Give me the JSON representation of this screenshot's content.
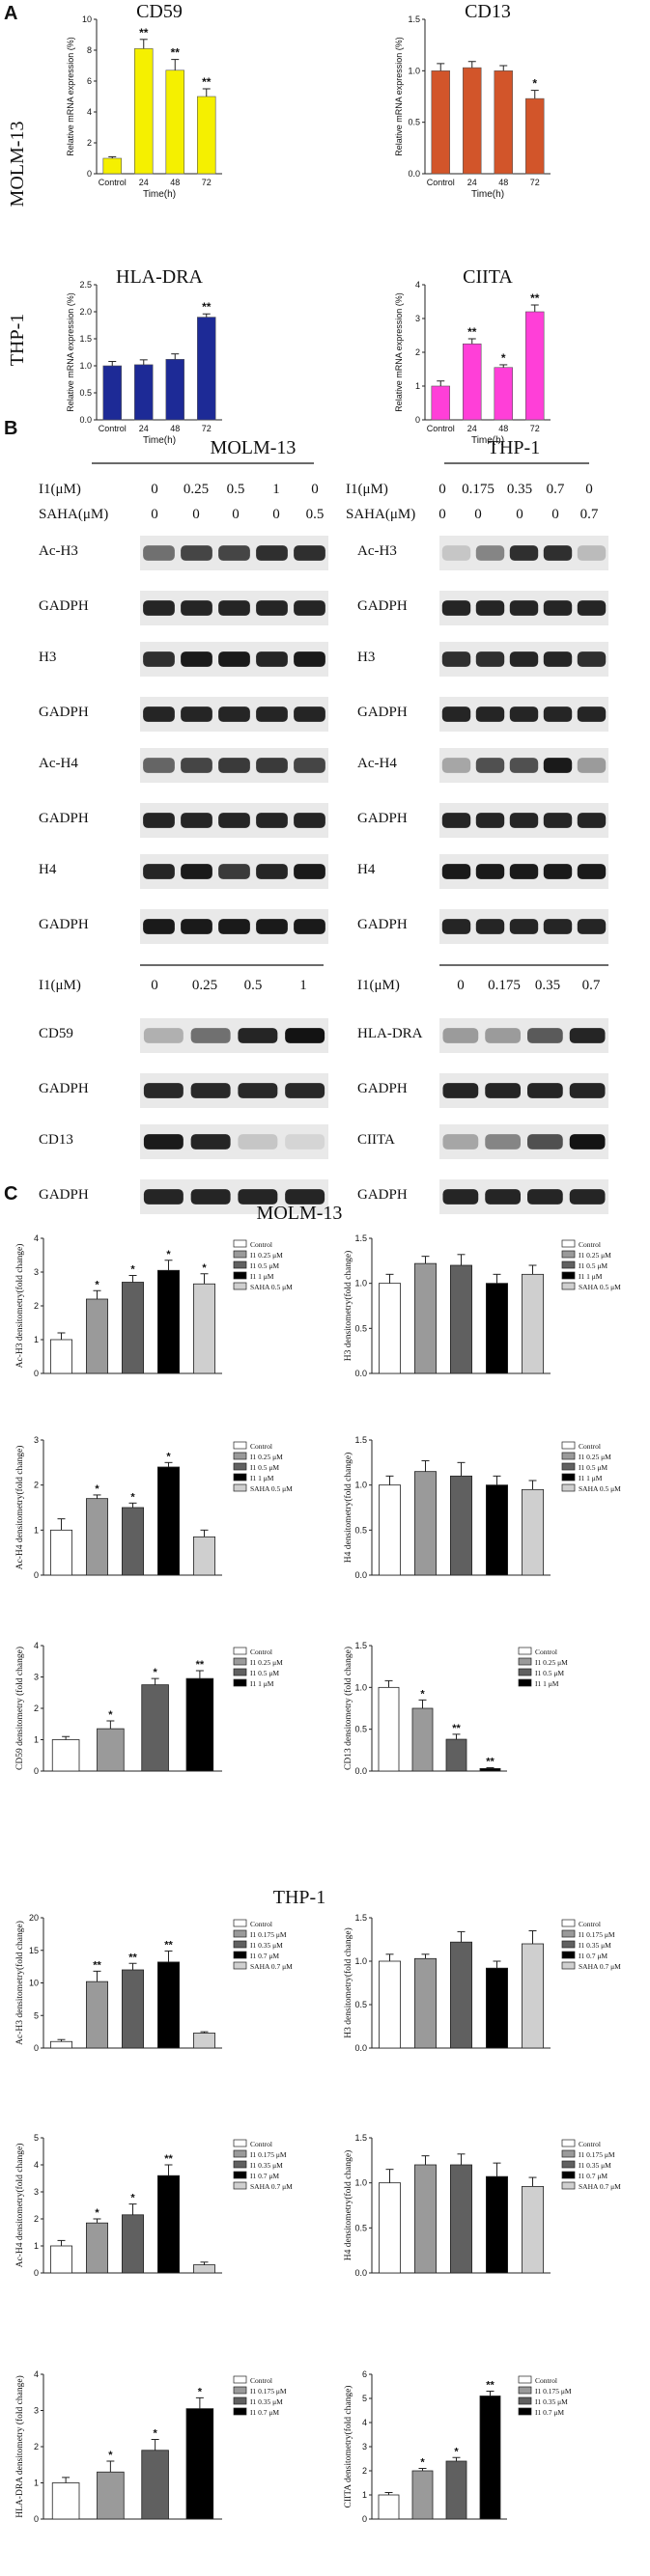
{
  "panel_labels": {
    "a": "A",
    "b": "B",
    "c": "C"
  },
  "colors": {
    "yellow": "#f5f000",
    "orange": "#d2552a",
    "navy": "#1d2a96",
    "magenta": "#ff3fd8",
    "bar_white": "#ffffff",
    "bar_light": "#9a9a9a",
    "bar_mid": "#606060",
    "bar_black": "#000000",
    "bar_pale": "#cfcfcf"
  },
  "section_a": {
    "row_labels": [
      "MOLM-13",
      "THP-1"
    ],
    "charts": [
      {
        "type": "bar",
        "title": "CD59",
        "ylabel": "Relative mRNA expression (%)",
        "xlabel": "Time(h)",
        "categories": [
          "Control",
          "24",
          "48",
          "72"
        ],
        "values": [
          1.0,
          8.1,
          6.7,
          5.0
        ],
        "errors": [
          0.1,
          0.6,
          0.7,
          0.5
        ],
        "sig": [
          "",
          "**",
          "**",
          "**"
        ],
        "ylim": [
          0,
          10
        ],
        "yticks": [
          0,
          2,
          4,
          6,
          8,
          10
        ],
        "color": "#f5f000"
      },
      {
        "type": "bar",
        "title": "CD13",
        "ylabel": "Relative mRNA expression (%)",
        "xlabel": "Time(h)",
        "categories": [
          "Control",
          "24",
          "48",
          "72"
        ],
        "values": [
          1.0,
          1.03,
          1.0,
          0.73
        ],
        "errors": [
          0.07,
          0.06,
          0.05,
          0.08
        ],
        "sig": [
          "",
          "",
          "",
          "*"
        ],
        "ylim": [
          0,
          1.5
        ],
        "yticks": [
          0.0,
          0.5,
          1.0,
          1.5
        ],
        "color": "#d2552a"
      },
      {
        "type": "bar",
        "title": "HLA-DRA",
        "ylabel": "Relative mRNA expression (%)",
        "xlabel": "Time(h)",
        "categories": [
          "Control",
          "24",
          "48",
          "72"
        ],
        "values": [
          1.0,
          1.02,
          1.12,
          1.9
        ],
        "errors": [
          0.08,
          0.09,
          0.1,
          0.06
        ],
        "sig": [
          "",
          "",
          "",
          "**"
        ],
        "ylim": [
          0,
          2.5
        ],
        "yticks": [
          0.0,
          0.5,
          1.0,
          1.5,
          2.0,
          2.5
        ],
        "color": "#1d2a96"
      },
      {
        "type": "bar",
        "title": "CIITA",
        "ylabel": "Relative mRNA expression (%)",
        "xlabel": "Time(h)",
        "categories": [
          "Control",
          "24",
          "48",
          "72"
        ],
        "values": [
          1.0,
          2.25,
          1.55,
          3.2
        ],
        "errors": [
          0.15,
          0.15,
          0.08,
          0.2
        ],
        "sig": [
          "",
          "**",
          "*",
          "**"
        ],
        "ylim": [
          0,
          4
        ],
        "yticks": [
          0,
          1,
          2,
          3,
          4
        ],
        "color": "#ff3fd8"
      }
    ]
  },
  "section_b": {
    "molm_title": "MOLM-13",
    "thp_title": "THP-1",
    "molm_i1_label": "I1(μM)",
    "molm_saha_label": "SAHA(μM)",
    "molm_i1_values": [
      "0",
      "0.25",
      "0.5",
      "1",
      "0"
    ],
    "molm_saha_values": [
      "0",
      "0",
      "0",
      "0",
      "0.5"
    ],
    "thp_i1_label": "I1(μM)",
    "thp_saha_label": "SAHA(μM)",
    "thp_i1_values": [
      "0",
      "0.175",
      "0.35",
      "0.7",
      "0"
    ],
    "thp_saha_values": [
      "0",
      "0",
      "0",
      "0",
      "0.7"
    ],
    "blot_labels": [
      "Ac-H3",
      "GADPH",
      "H3",
      "GADPH",
      "Ac-H4",
      "GADPH",
      "H4",
      "GADPH"
    ],
    "lower_i1_label": "I1(μM)",
    "lower_molm_values": [
      "0",
      "0.25",
      "0.5",
      "1"
    ],
    "lower_thp_values": [
      "0",
      "0.175",
      "0.35",
      "0.7"
    ],
    "lower_molm_labels": [
      "CD59",
      "GADPH",
      "CD13",
      "GADPH"
    ],
    "lower_thp_labels": [
      "HLA-DRA",
      "GADPH",
      "CIITA",
      "GADPH"
    ]
  },
  "section_c": {
    "molm_title": "MOLM-13",
    "thp_title": "THP-1",
    "chart_data": [
      {
        "type": "bar",
        "ylabel": "Ac-H3 densitometry(fold change)",
        "categories": [
          "Control",
          "I1 0.25 μM",
          "I1 0.5 μM",
          "I1 1 μM",
          "SAHA 0.5 μM"
        ],
        "values": [
          1.0,
          2.2,
          2.7,
          3.05,
          2.65
        ],
        "errors": [
          0.2,
          0.25,
          0.2,
          0.3,
          0.3
        ],
        "sig": [
          "",
          "*",
          "*",
          "*",
          "*"
        ],
        "ylim": [
          0,
          4
        ],
        "yticks": [
          0,
          1,
          2,
          3,
          4
        ]
      },
      {
        "type": "bar",
        "ylabel": "H3 densitometry(fold change)",
        "categories": [
          "Control",
          "I1 0.25 μM",
          "I1 0.5 μM",
          "I1 1 μM",
          "SAHA 0.5 μM"
        ],
        "values": [
          1.0,
          1.22,
          1.2,
          1.0,
          1.1
        ],
        "errors": [
          0.1,
          0.08,
          0.12,
          0.1,
          0.1
        ],
        "sig": [
          "",
          "",
          "",
          "",
          ""
        ],
        "ylim": [
          0,
          1.5
        ],
        "yticks": [
          0.0,
          0.5,
          1.0,
          1.5
        ]
      },
      {
        "type": "bar",
        "ylabel": "Ac-H4 densitometry(fold change)",
        "categories": [
          "Control",
          "I1 0.25 μM",
          "I1 0.5 μM",
          "I1 1 μM",
          "SAHA 0.5 μM"
        ],
        "values": [
          1.0,
          1.7,
          1.5,
          2.4,
          0.85
        ],
        "errors": [
          0.25,
          0.08,
          0.1,
          0.1,
          0.15
        ],
        "sig": [
          "",
          "*",
          "*",
          "*",
          ""
        ],
        "ylim": [
          0,
          3
        ],
        "yticks": [
          0,
          1,
          2,
          3
        ]
      },
      {
        "type": "bar",
        "ylabel": "H4 densitometry(fold change)",
        "categories": [
          "Control",
          "I1 0.25 μM",
          "I1 0.5 μM",
          "I1 1 μM",
          "SAHA 0.5 μM"
        ],
        "values": [
          1.0,
          1.15,
          1.1,
          1.0,
          0.95
        ],
        "errors": [
          0.1,
          0.12,
          0.15,
          0.1,
          0.1
        ],
        "sig": [
          "",
          "",
          "",
          "",
          ""
        ],
        "ylim": [
          0,
          1.5
        ],
        "yticks": [
          0.0,
          0.5,
          1.0,
          1.5
        ]
      },
      {
        "type": "bar",
        "ylabel": "CD59 densitometry (fold change)",
        "categories": [
          "Control",
          "I1 0.25 μM",
          "I1 0.5 μM",
          "I1 1 μM"
        ],
        "values": [
          1.0,
          1.35,
          2.75,
          2.95
        ],
        "errors": [
          0.1,
          0.25,
          0.2,
          0.25
        ],
        "sig": [
          "",
          "*",
          "*",
          "**"
        ],
        "ylim": [
          0,
          4
        ],
        "yticks": [
          0,
          1,
          2,
          3,
          4
        ]
      },
      {
        "type": "bar",
        "ylabel": "CD13 densitometry (fold change)",
        "categories": [
          "Control",
          "I1 0.25 μM",
          "I1 0.5 μM",
          "I1 1 μM"
        ],
        "values": [
          1.0,
          0.75,
          0.38,
          0.03
        ],
        "errors": [
          0.08,
          0.1,
          0.06,
          0.01
        ],
        "sig": [
          "",
          "*",
          "**",
          "**"
        ],
        "ylim": [
          0,
          1.5
        ],
        "yticks": [
          0.0,
          0.5,
          1.0,
          1.5
        ]
      },
      {
        "type": "bar",
        "ylabel": "Ac-H3 densitometry(fold change)",
        "categories": [
          "Control",
          "I1 0.175 μM",
          "I1 0.35 μM",
          "I1 0.7 μM",
          "SAHA 0.7 μM"
        ],
        "values": [
          1.0,
          10.2,
          12.0,
          13.2,
          2.3
        ],
        "errors": [
          0.3,
          1.6,
          1.0,
          1.7,
          0.2
        ],
        "sig": [
          "",
          "**",
          "**",
          "**",
          ""
        ],
        "ylim": [
          0,
          20
        ],
        "yticks": [
          0,
          5,
          10,
          15,
          20
        ]
      },
      {
        "type": "bar",
        "ylabel": "H3 densitometry(fold change)",
        "categories": [
          "Control",
          "I1 0.175 μM",
          "I1 0.35 μM",
          "I1 0.7 μM",
          "SAHA 0.7 μM"
        ],
        "values": [
          1.0,
          1.03,
          1.22,
          0.92,
          1.2
        ],
        "errors": [
          0.08,
          0.05,
          0.12,
          0.08,
          0.15
        ],
        "sig": [
          "",
          "",
          "",
          "",
          ""
        ],
        "ylim": [
          0,
          1.5
        ],
        "yticks": [
          0.0,
          0.5,
          1.0,
          1.5
        ]
      },
      {
        "type": "bar",
        "ylabel": "Ac-H4 densitometry(fold change)",
        "categories": [
          "Control",
          "I1 0.175 μM",
          "I1 0.35 μM",
          "I1 0.7 μM",
          "SAHA 0.7 μM"
        ],
        "values": [
          1.0,
          1.85,
          2.15,
          3.6,
          0.3
        ],
        "errors": [
          0.2,
          0.15,
          0.4,
          0.4,
          0.1
        ],
        "sig": [
          "",
          "*",
          "*",
          "**",
          ""
        ],
        "ylim": [
          0,
          5
        ],
        "yticks": [
          0,
          1,
          2,
          3,
          4,
          5
        ]
      },
      {
        "type": "bar",
        "ylabel": "H4 densitometry(fold change)",
        "categories": [
          "Control",
          "I1 0.175 μM",
          "I1 0.35 μM",
          "I1 0.7 μM",
          "SAHA 0.7 μM"
        ],
        "values": [
          1.0,
          1.2,
          1.2,
          1.07,
          0.96
        ],
        "errors": [
          0.15,
          0.1,
          0.12,
          0.15,
          0.1
        ],
        "sig": [
          "",
          "",
          "",
          "",
          ""
        ],
        "ylim": [
          0,
          1.5
        ],
        "yticks": [
          0.0,
          0.5,
          1.0,
          1.5
        ]
      },
      {
        "type": "bar",
        "ylabel": "HLA-DRA densitometry (fold change)",
        "categories": [
          "Control",
          "I1 0.175 μM",
          "I1 0.35 μM",
          "I1 0.7 μM"
        ],
        "values": [
          1.0,
          1.3,
          1.9,
          3.05
        ],
        "errors": [
          0.15,
          0.3,
          0.3,
          0.3
        ],
        "sig": [
          "",
          "*",
          "*",
          "*"
        ],
        "ylim": [
          0,
          4
        ],
        "yticks": [
          0,
          1,
          2,
          3,
          4
        ]
      },
      {
        "type": "bar",
        "ylabel": "CIITA densitometry(fold change)",
        "categories": [
          "Control",
          "I1 0.175 μM",
          "I1 0.35 μM",
          "I1 0.7 μM"
        ],
        "values": [
          1.0,
          2.0,
          2.4,
          5.1
        ],
        "errors": [
          0.1,
          0.1,
          0.15,
          0.2
        ],
        "sig": [
          "",
          "*",
          "*",
          "**"
        ],
        "ylim": [
          0,
          6
        ],
        "yticks": [
          0,
          1,
          2,
          3,
          4,
          5,
          6
        ]
      }
    ]
  }
}
